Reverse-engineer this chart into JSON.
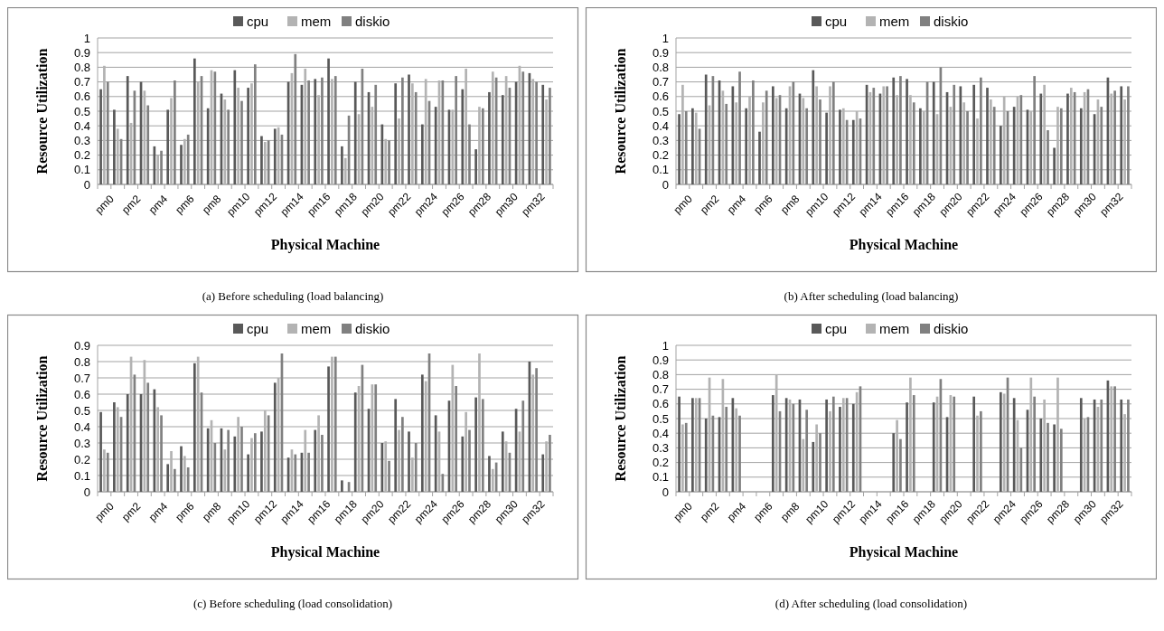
{
  "chart_data": [
    {
      "type": "bar",
      "title": "(a) Before scheduling (load balancing)",
      "xlabel": "Physical Machine",
      "ylabel": "Resource Utilization",
      "categories": [
        "pm0",
        null,
        "pm2",
        null,
        "pm4",
        null,
        "pm6",
        null,
        "pm8",
        null,
        "pm10",
        null,
        "pm12",
        null,
        "pm14",
        null,
        "pm16",
        null,
        "pm18",
        null,
        "pm20",
        null,
        "pm22",
        null,
        "pm24",
        null,
        "pm26",
        null,
        "pm28",
        null,
        "pm30",
        null,
        "pm32",
        null
      ],
      "series": [
        {
          "name": "cpu",
          "color": "#595959",
          "values": [
            0.65,
            0.51,
            0.74,
            0.7,
            0.26,
            0.51,
            0.27,
            0.86,
            0.52,
            0.62,
            0.78,
            0.66,
            0.33,
            0.38,
            0.7,
            0.68,
            0.72,
            0.86,
            0.26,
            0.7,
            0.63,
            0.41,
            0.69,
            0.75,
            0.41,
            0.53,
            0.51,
            0.65,
            0.24,
            0.63,
            0.61,
            0.7,
            0.76,
            0.68
          ]
        },
        {
          "name": "mem",
          "color": "#b3b3b3",
          "values": [
            0.81,
            0.38,
            0.42,
            0.64,
            0.2,
            0.59,
            0.31,
            0.7,
            0.78,
            0.58,
            0.66,
            0.69,
            0.29,
            0.39,
            0.76,
            0.79,
            0.61,
            0.72,
            0.18,
            0.48,
            0.53,
            0.31,
            0.45,
            0.69,
            0.72,
            0.71,
            0.51,
            0.79,
            0.53,
            0.77,
            0.74,
            0.81,
            0.72,
            0.58
          ]
        },
        {
          "name": "diskio",
          "color": "#808080",
          "values": [
            0.7,
            0.31,
            0.64,
            0.54,
            0.23,
            0.71,
            0.34,
            0.74,
            0.77,
            0.51,
            0.57,
            0.82,
            0.3,
            0.34,
            0.89,
            0.71,
            0.73,
            0.74,
            0.47,
            0.79,
            0.68,
            0.3,
            0.73,
            0.63,
            0.57,
            0.71,
            0.74,
            0.41,
            0.52,
            0.73,
            0.66,
            0.77,
            0.7,
            0.66
          ]
        }
      ],
      "ylim": [
        0,
        1
      ],
      "yticks": [
        0,
        0.1,
        0.2,
        0.3,
        0.4,
        0.5,
        0.6,
        0.7,
        0.8,
        0.9,
        1
      ],
      "grid": "y",
      "legend": "top"
    },
    {
      "type": "bar",
      "title": "(b) After scheduling (load balancing)",
      "xlabel": "Physical Machine",
      "ylabel": "Resource Utilization",
      "categories": [
        "pm0",
        null,
        "pm2",
        null,
        "pm4",
        null,
        "pm6",
        null,
        "pm8",
        null,
        "pm10",
        null,
        "pm12",
        null,
        "pm14",
        null,
        "pm16",
        null,
        "pm18",
        null,
        "pm20",
        null,
        "pm22",
        null,
        "pm24",
        null,
        "pm26",
        null,
        "pm28",
        null,
        "pm30",
        null,
        "pm32",
        null
      ],
      "series": [
        {
          "name": "cpu",
          "color": "#595959",
          "values": [
            0.48,
            0.52,
            0.75,
            0.71,
            0.67,
            0.52,
            0.36,
            0.67,
            0.52,
            0.62,
            0.78,
            0.49,
            0.51,
            0.44,
            0.68,
            0.62,
            0.73,
            0.72,
            0.52,
            0.7,
            0.63,
            0.67,
            0.68,
            0.66,
            0.4,
            0.53,
            0.51,
            0.62,
            0.25,
            0.62,
            0.52,
            0.48,
            0.73,
            0.67
          ]
        },
        {
          "name": "mem",
          "color": "#b3b3b3",
          "values": [
            0.68,
            0.49,
            0.54,
            0.64,
            0.56,
            0.6,
            0.56,
            0.59,
            0.67,
            0.59,
            0.67,
            0.67,
            0.52,
            0.5,
            0.63,
            0.67,
            0.61,
            0.61,
            0.5,
            0.48,
            0.53,
            0.56,
            0.45,
            0.58,
            0.6,
            0.6,
            0.5,
            0.68,
            0.53,
            0.66,
            0.63,
            0.58,
            0.62,
            0.58
          ]
        },
        {
          "name": "diskio",
          "color": "#808080",
          "values": [
            0.5,
            0.38,
            0.74,
            0.55,
            0.77,
            0.71,
            0.64,
            0.61,
            0.7,
            0.52,
            0.58,
            0.7,
            0.44,
            0.45,
            0.66,
            0.67,
            0.74,
            0.56,
            0.7,
            0.8,
            0.68,
            0.5,
            0.73,
            0.53,
            0.5,
            0.61,
            0.74,
            0.37,
            0.52,
            0.63,
            0.65,
            0.53,
            0.64,
            0.67
          ]
        }
      ],
      "ylim": [
        0,
        1
      ],
      "yticks": [
        0,
        0.1,
        0.2,
        0.3,
        0.4,
        0.5,
        0.6,
        0.7,
        0.8,
        0.9,
        1
      ],
      "grid": "y",
      "legend": "top"
    },
    {
      "type": "bar",
      "title": "(c) Before scheduling (load consolidation)",
      "xlabel": "Physical Machine",
      "ylabel": "Resource Utilization",
      "categories": [
        "pm0",
        null,
        "pm2",
        null,
        "pm4",
        null,
        "pm6",
        null,
        "pm8",
        null,
        "pm10",
        null,
        "pm12",
        null,
        "pm14",
        null,
        "pm16",
        null,
        "pm18",
        null,
        "pm20",
        null,
        "pm22",
        null,
        "pm24",
        null,
        "pm26",
        null,
        "pm28",
        null,
        "pm30",
        null,
        "pm32",
        null
      ],
      "series": [
        {
          "name": "cpu",
          "color": "#595959",
          "values": [
            0.49,
            0.55,
            0.6,
            0.6,
            0.63,
            0.17,
            0.28,
            0.79,
            0.39,
            0.39,
            0.34,
            0.23,
            0.37,
            0.67,
            0.21,
            0.24,
            0.38,
            0.77,
            0.07,
            0.61,
            0.51,
            0.3,
            0.57,
            0.37,
            0.72,
            0.47,
            0.56,
            0.34,
            0.58,
            0.22,
            0.37,
            0.51,
            0.8,
            0.23
          ]
        },
        {
          "name": "mem",
          "color": "#b3b3b3",
          "values": [
            0.26,
            0.52,
            0.83,
            0.81,
            0.52,
            0.25,
            0.22,
            0.83,
            0.44,
            0.26,
            0.46,
            0.33,
            0.5,
            0.7,
            0.26,
            0.38,
            0.47,
            0.83,
            0,
            0.65,
            0.66,
            0.31,
            0.38,
            0.21,
            0.68,
            0.37,
            0.78,
            0.49,
            0.85,
            0.14,
            0.31,
            0.37,
            0.72,
            0.31
          ]
        },
        {
          "name": "diskio",
          "color": "#808080",
          "values": [
            0.24,
            0.46,
            0.72,
            0.67,
            0.47,
            0.14,
            0.15,
            0.61,
            0.3,
            0.38,
            0.4,
            0.36,
            0.47,
            0.85,
            0.23,
            0.24,
            0.35,
            0.83,
            0.06,
            0.78,
            0.66,
            0.19,
            0.46,
            0.3,
            0.85,
            0.11,
            0.65,
            0.38,
            0.57,
            0.18,
            0.24,
            0.56,
            0.76,
            0.35
          ]
        }
      ],
      "ylim": [
        0,
        0.9
      ],
      "yticks": [
        0,
        0.1,
        0.2,
        0.3,
        0.4,
        0.5,
        0.6,
        0.7,
        0.8,
        0.9
      ],
      "grid": "y",
      "legend": "top"
    },
    {
      "type": "bar",
      "title": "(d) After scheduling (load consolidation)",
      "xlabel": "Physical Machine",
      "ylabel": "Resource Utilization",
      "categories": [
        "pm0",
        null,
        "pm2",
        null,
        "pm4",
        null,
        "pm6",
        null,
        "pm8",
        null,
        "pm10",
        null,
        "pm12",
        null,
        "pm14",
        null,
        "pm16",
        null,
        "pm18",
        null,
        "pm20",
        null,
        "pm22",
        null,
        "pm24",
        null,
        "pm26",
        null,
        "pm28",
        null,
        "pm30",
        null,
        "pm32",
        null
      ],
      "series": [
        {
          "name": "cpu",
          "color": "#595959",
          "values": [
            0.65,
            0.64,
            0.5,
            0.51,
            0.64,
            0,
            0,
            0.66,
            0.64,
            0.63,
            0.34,
            0.63,
            0.58,
            0.6,
            0,
            0,
            0.4,
            0.61,
            0,
            0.61,
            0.51,
            0,
            0.65,
            0,
            0.68,
            0.64,
            0.56,
            0.5,
            0.46,
            0,
            0.64,
            0.63,
            0.76,
            0.63
          ]
        },
        {
          "name": "mem",
          "color": "#b3b3b3",
          "values": [
            0.46,
            0.64,
            0.78,
            0.77,
            0.57,
            0,
            0,
            0.8,
            0.63,
            0.36,
            0.46,
            0.55,
            0.64,
            0.68,
            0,
            0,
            0.49,
            0.78,
            0,
            0.65,
            0.66,
            0,
            0.52,
            0,
            0.67,
            0.49,
            0.78,
            0.63,
            0.78,
            0,
            0.5,
            0.58,
            0.72,
            0.53
          ]
        },
        {
          "name": "diskio",
          "color": "#808080",
          "values": [
            0.47,
            0.64,
            0.52,
            0.58,
            0.52,
            0,
            0,
            0.55,
            0.6,
            0.56,
            0.4,
            0.65,
            0.64,
            0.72,
            0,
            0,
            0.36,
            0.66,
            0,
            0.77,
            0.65,
            0,
            0.55,
            0,
            0.78,
            0.3,
            0.65,
            0.47,
            0.43,
            0,
            0.51,
            0.63,
            0.72,
            0.63
          ]
        }
      ],
      "ylim": [
        0,
        1
      ],
      "yticks": [
        0,
        0.1,
        0.2,
        0.3,
        0.4,
        0.5,
        0.6,
        0.7,
        0.8,
        0.9,
        1
      ],
      "grid": "y",
      "legend": "top"
    }
  ]
}
